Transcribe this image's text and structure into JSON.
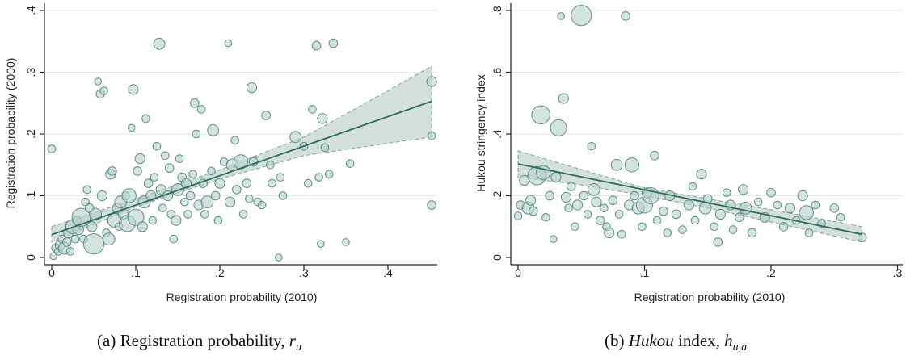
{
  "figure": {
    "panels": [
      {
        "id": "a",
        "caption_prefix": "(a)",
        "caption_text": "Registration probability,",
        "caption_symbol": "r",
        "caption_sub": "u"
      },
      {
        "id": "b",
        "caption_prefix": "(b)",
        "caption_italic": "Hukou",
        "caption_text": "index,",
        "caption_symbol": "h",
        "caption_sub": "u,a"
      }
    ]
  },
  "colors": {
    "marker_fill": "#b8d1cc",
    "marker_stroke": "#5f8e86",
    "fit_line": "#2e6a5f",
    "ci_fill": "#cddad6",
    "ci_stroke": "#7fa59d",
    "grid": "#e6e9e8",
    "axis": "#222222"
  },
  "chart_data": [
    {
      "type": "scatter",
      "xlabel": "Registration probability (2010)",
      "ylabel": "Registration probability (2000)",
      "xlim": [
        0,
        0.45
      ],
      "ylim": [
        0,
        0.4
      ],
      "xticks": [
        0,
        0.1,
        0.2,
        0.3,
        0.4
      ],
      "xtick_labels": [
        "0",
        ".1",
        ".2",
        ".3",
        ".4"
      ],
      "yticks": [
        0,
        0.1,
        0.2,
        0.3,
        0.4
      ],
      "ytick_labels": [
        "0",
        ".1",
        ".2",
        ".3",
        ".4"
      ],
      "grid": true,
      "marker_size": "proportional to weight",
      "fit": {
        "type": "linear",
        "x": [
          0,
          0.452
        ],
        "y": [
          0.037,
          0.253
        ]
      },
      "confidence_band": [
        {
          "x": 0.0,
          "lo": 0.025,
          "hi": 0.05
        },
        {
          "x": 0.1,
          "lo": 0.082,
          "hi": 0.095
        },
        {
          "x": 0.2,
          "lo": 0.127,
          "hi": 0.142
        },
        {
          "x": 0.3,
          "lo": 0.165,
          "hi": 0.195
        },
        {
          "x": 0.4,
          "lo": 0.185,
          "hi": 0.27
        },
        {
          "x": 0.452,
          "lo": 0.195,
          "hi": 0.31
        }
      ],
      "points": [
        {
          "x": 0.0,
          "y": 0.176,
          "w": 1.0
        },
        {
          "x": 0.002,
          "y": 0.002,
          "w": 0.8
        },
        {
          "x": 0.005,
          "y": 0.015,
          "w": 1.2
        },
        {
          "x": 0.008,
          "y": 0.01,
          "w": 1.0
        },
        {
          "x": 0.01,
          "y": 0.02,
          "w": 1.5
        },
        {
          "x": 0.012,
          "y": 0.03,
          "w": 1.0
        },
        {
          "x": 0.015,
          "y": 0.015,
          "w": 2.0
        },
        {
          "x": 0.018,
          "y": 0.025,
          "w": 1.2
        },
        {
          "x": 0.02,
          "y": 0.04,
          "w": 1.5
        },
        {
          "x": 0.022,
          "y": 0.01,
          "w": 1.0
        },
        {
          "x": 0.025,
          "y": 0.05,
          "w": 2.5
        },
        {
          "x": 0.028,
          "y": 0.03,
          "w": 1.0
        },
        {
          "x": 0.03,
          "y": 0.06,
          "w": 1.2
        },
        {
          "x": 0.032,
          "y": 0.045,
          "w": 1.5
        },
        {
          "x": 0.035,
          "y": 0.065,
          "w": 3.5
        },
        {
          "x": 0.038,
          "y": 0.03,
          "w": 1.0
        },
        {
          "x": 0.04,
          "y": 0.09,
          "w": 1.0
        },
        {
          "x": 0.042,
          "y": 0.11,
          "w": 1.0
        },
        {
          "x": 0.045,
          "y": 0.08,
          "w": 1.2
        },
        {
          "x": 0.048,
          "y": 0.05,
          "w": 1.5
        },
        {
          "x": 0.05,
          "y": 0.022,
          "w": 4.0
        },
        {
          "x": 0.052,
          "y": 0.07,
          "w": 2.0
        },
        {
          "x": 0.055,
          "y": 0.285,
          "w": 0.8
        },
        {
          "x": 0.058,
          "y": 0.265,
          "w": 1.2
        },
        {
          "x": 0.06,
          "y": 0.1,
          "w": 1.5
        },
        {
          "x": 0.062,
          "y": 0.27,
          "w": 1.0
        },
        {
          "x": 0.065,
          "y": 0.04,
          "w": 1.0
        },
        {
          "x": 0.068,
          "y": 0.03,
          "w": 2.0
        },
        {
          "x": 0.07,
          "y": 0.135,
          "w": 1.5
        },
        {
          "x": 0.072,
          "y": 0.14,
          "w": 1.2
        },
        {
          "x": 0.075,
          "y": 0.06,
          "w": 2.5
        },
        {
          "x": 0.078,
          "y": 0.08,
          "w": 1.5
        },
        {
          "x": 0.08,
          "y": 0.05,
          "w": 1.0
        },
        {
          "x": 0.082,
          "y": 0.09,
          "w": 2.0
        },
        {
          "x": 0.085,
          "y": 0.07,
          "w": 1.5
        },
        {
          "x": 0.088,
          "y": 0.1,
          "w": 1.0
        },
        {
          "x": 0.09,
          "y": 0.055,
          "w": 3.0
        },
        {
          "x": 0.092,
          "y": 0.1,
          "w": 2.5
        },
        {
          "x": 0.095,
          "y": 0.21,
          "w": 0.8
        },
        {
          "x": 0.097,
          "y": 0.272,
          "w": 1.5
        },
        {
          "x": 0.1,
          "y": 0.065,
          "w": 3.0
        },
        {
          "x": 0.102,
          "y": 0.14,
          "w": 1.2
        },
        {
          "x": 0.105,
          "y": 0.16,
          "w": 1.5
        },
        {
          "x": 0.108,
          "y": 0.05,
          "w": 1.5
        },
        {
          "x": 0.11,
          "y": 0.09,
          "w": 2.0
        },
        {
          "x": 0.112,
          "y": 0.225,
          "w": 1.0
        },
        {
          "x": 0.115,
          "y": 0.12,
          "w": 1.2
        },
        {
          "x": 0.118,
          "y": 0.1,
          "w": 1.5
        },
        {
          "x": 0.12,
          "y": 0.06,
          "w": 1.0
        },
        {
          "x": 0.122,
          "y": 0.13,
          "w": 1.0
        },
        {
          "x": 0.125,
          "y": 0.18,
          "w": 1.0
        },
        {
          "x": 0.128,
          "y": 0.346,
          "w": 1.8
        },
        {
          "x": 0.13,
          "y": 0.11,
          "w": 1.5
        },
        {
          "x": 0.132,
          "y": 0.08,
          "w": 1.0
        },
        {
          "x": 0.135,
          "y": 0.165,
          "w": 1.0
        },
        {
          "x": 0.138,
          "y": 0.1,
          "w": 1.5
        },
        {
          "x": 0.14,
          "y": 0.145,
          "w": 1.2
        },
        {
          "x": 0.142,
          "y": 0.07,
          "w": 1.0
        },
        {
          "x": 0.145,
          "y": 0.03,
          "w": 1.0
        },
        {
          "x": 0.148,
          "y": 0.06,
          "w": 1.5
        },
        {
          "x": 0.15,
          "y": 0.11,
          "w": 2.0
        },
        {
          "x": 0.152,
          "y": 0.16,
          "w": 1.0
        },
        {
          "x": 0.155,
          "y": 0.13,
          "w": 1.2
        },
        {
          "x": 0.158,
          "y": 0.09,
          "w": 1.0
        },
        {
          "x": 0.16,
          "y": 0.12,
          "w": 1.5
        },
        {
          "x": 0.162,
          "y": 0.07,
          "w": 1.0
        },
        {
          "x": 0.165,
          "y": 0.1,
          "w": 1.2
        },
        {
          "x": 0.168,
          "y": 0.135,
          "w": 1.0
        },
        {
          "x": 0.17,
          "y": 0.25,
          "w": 1.2
        },
        {
          "x": 0.172,
          "y": 0.2,
          "w": 1.0
        },
        {
          "x": 0.175,
          "y": 0.085,
          "w": 1.5
        },
        {
          "x": 0.178,
          "y": 0.24,
          "w": 1.0
        },
        {
          "x": 0.18,
          "y": 0.12,
          "w": 1.2
        },
        {
          "x": 0.182,
          "y": 0.07,
          "w": 1.0
        },
        {
          "x": 0.185,
          "y": 0.09,
          "w": 2.0
        },
        {
          "x": 0.19,
          "y": 0.14,
          "w": 1.0
        },
        {
          "x": 0.192,
          "y": 0.206,
          "w": 1.8
        },
        {
          "x": 0.195,
          "y": 0.1,
          "w": 1.2
        },
        {
          "x": 0.198,
          "y": 0.06,
          "w": 1.0
        },
        {
          "x": 0.2,
          "y": 0.12,
          "w": 1.5
        },
        {
          "x": 0.205,
          "y": 0.155,
          "w": 1.0
        },
        {
          "x": 0.21,
          "y": 0.347,
          "w": 0.8
        },
        {
          "x": 0.212,
          "y": 0.09,
          "w": 1.5
        },
        {
          "x": 0.215,
          "y": 0.15,
          "w": 2.0
        },
        {
          "x": 0.218,
          "y": 0.19,
          "w": 1.0
        },
        {
          "x": 0.22,
          "y": 0.11,
          "w": 1.2
        },
        {
          "x": 0.225,
          "y": 0.155,
          "w": 2.5
        },
        {
          "x": 0.228,
          "y": 0.07,
          "w": 1.0
        },
        {
          "x": 0.232,
          "y": 0.12,
          "w": 1.2
        },
        {
          "x": 0.235,
          "y": 0.095,
          "w": 1.0
        },
        {
          "x": 0.238,
          "y": 0.275,
          "w": 1.5
        },
        {
          "x": 0.24,
          "y": 0.155,
          "w": 1.2
        },
        {
          "x": 0.245,
          "y": 0.09,
          "w": 1.0
        },
        {
          "x": 0.25,
          "y": 0.085,
          "w": 1.0
        },
        {
          "x": 0.255,
          "y": 0.23,
          "w": 1.2
        },
        {
          "x": 0.26,
          "y": 0.15,
          "w": 1.0
        },
        {
          "x": 0.262,
          "y": 0.12,
          "w": 1.0
        },
        {
          "x": 0.27,
          "y": 0.0,
          "w": 0.8
        },
        {
          "x": 0.272,
          "y": 0.13,
          "w": 1.0
        },
        {
          "x": 0.275,
          "y": 0.1,
          "w": 1.0
        },
        {
          "x": 0.29,
          "y": 0.195,
          "w": 1.8
        },
        {
          "x": 0.3,
          "y": 0.18,
          "w": 1.0
        },
        {
          "x": 0.305,
          "y": 0.12,
          "w": 1.0
        },
        {
          "x": 0.31,
          "y": 0.24,
          "w": 1.0
        },
        {
          "x": 0.315,
          "y": 0.343,
          "w": 1.2
        },
        {
          "x": 0.318,
          "y": 0.13,
          "w": 1.0
        },
        {
          "x": 0.32,
          "y": 0.022,
          "w": 0.8
        },
        {
          "x": 0.322,
          "y": 0.225,
          "w": 1.5
        },
        {
          "x": 0.325,
          "y": 0.178,
          "w": 1.0
        },
        {
          "x": 0.33,
          "y": 0.135,
          "w": 1.0
        },
        {
          "x": 0.335,
          "y": 0.347,
          "w": 1.2
        },
        {
          "x": 0.35,
          "y": 0.025,
          "w": 0.8
        },
        {
          "x": 0.355,
          "y": 0.152,
          "w": 1.0
        },
        {
          "x": 0.452,
          "y": 0.285,
          "w": 1.5
        },
        {
          "x": 0.452,
          "y": 0.197,
          "w": 1.0
        },
        {
          "x": 0.452,
          "y": 0.085,
          "w": 1.2
        }
      ]
    },
    {
      "type": "scatter",
      "xlabel": "Registration probability (2010)",
      "ylabel": "Hukou stringency index",
      "xlim": [
        0,
        0.3
      ],
      "ylim": [
        0,
        0.8
      ],
      "xticks": [
        0,
        0.1,
        0.2,
        0.3
      ],
      "xtick_labels": [
        "0",
        ".1",
        ".2",
        ".3"
      ],
      "yticks": [
        0,
        0.2,
        0.4,
        0.6,
        0.8
      ],
      "ytick_labels": [
        "0",
        ".2",
        ".4",
        ".6",
        ".8"
      ],
      "grid": true,
      "marker_size": "proportional to weight",
      "fit": {
        "type": "linear",
        "x": [
          0,
          0.272
        ],
        "y": [
          0.303,
          0.075
        ]
      },
      "confidence_band": [
        {
          "x": 0.0,
          "lo": 0.26,
          "hi": 0.345
        },
        {
          "x": 0.05,
          "lo": 0.235,
          "hi": 0.285
        },
        {
          "x": 0.1,
          "lo": 0.2,
          "hi": 0.225
        },
        {
          "x": 0.15,
          "lo": 0.16,
          "hi": 0.19
        },
        {
          "x": 0.2,
          "lo": 0.115,
          "hi": 0.155
        },
        {
          "x": 0.272,
          "lo": 0.05,
          "hi": 0.1
        }
      ],
      "points": [
        {
          "x": 0.0,
          "y": 0.135,
          "w": 1.0
        },
        {
          "x": 0.002,
          "y": 0.17,
          "w": 1.2
        },
        {
          "x": 0.005,
          "y": 0.25,
          "w": 1.5
        },
        {
          "x": 0.008,
          "y": 0.16,
          "w": 2.0
        },
        {
          "x": 0.01,
          "y": 0.185,
          "w": 1.5
        },
        {
          "x": 0.012,
          "y": 0.15,
          "w": 1.2
        },
        {
          "x": 0.015,
          "y": 0.265,
          "w": 3.5
        },
        {
          "x": 0.018,
          "y": 0.462,
          "w": 3.5
        },
        {
          "x": 0.02,
          "y": 0.275,
          "w": 2.5
        },
        {
          "x": 0.022,
          "y": 0.13,
          "w": 1.0
        },
        {
          "x": 0.025,
          "y": 0.2,
          "w": 1.2
        },
        {
          "x": 0.028,
          "y": 0.06,
          "w": 0.8
        },
        {
          "x": 0.03,
          "y": 0.26,
          "w": 1.5
        },
        {
          "x": 0.032,
          "y": 0.42,
          "w": 3.0
        },
        {
          "x": 0.034,
          "y": 0.782,
          "w": 0.8
        },
        {
          "x": 0.036,
          "y": 0.515,
          "w": 1.5
        },
        {
          "x": 0.038,
          "y": 0.195,
          "w": 1.5
        },
        {
          "x": 0.04,
          "y": 0.16,
          "w": 1.0
        },
        {
          "x": 0.042,
          "y": 0.23,
          "w": 1.2
        },
        {
          "x": 0.045,
          "y": 0.1,
          "w": 1.0
        },
        {
          "x": 0.047,
          "y": 0.17,
          "w": 1.5
        },
        {
          "x": 0.05,
          "y": 0.784,
          "w": 4.0
        },
        {
          "x": 0.052,
          "y": 0.2,
          "w": 1.2
        },
        {
          "x": 0.055,
          "y": 0.14,
          "w": 1.0
        },
        {
          "x": 0.058,
          "y": 0.36,
          "w": 1.0
        },
        {
          "x": 0.06,
          "y": 0.22,
          "w": 2.0
        },
        {
          "x": 0.062,
          "y": 0.18,
          "w": 1.5
        },
        {
          "x": 0.065,
          "y": 0.12,
          "w": 1.2
        },
        {
          "x": 0.068,
          "y": 0.16,
          "w": 1.0
        },
        {
          "x": 0.07,
          "y": 0.1,
          "w": 1.0
        },
        {
          "x": 0.072,
          "y": 0.08,
          "w": 1.5
        },
        {
          "x": 0.075,
          "y": 0.185,
          "w": 1.2
        },
        {
          "x": 0.078,
          "y": 0.3,
          "w": 1.8
        },
        {
          "x": 0.08,
          "y": 0.14,
          "w": 1.0
        },
        {
          "x": 0.082,
          "y": 0.075,
          "w": 1.0
        },
        {
          "x": 0.085,
          "y": 0.782,
          "w": 1.2
        },
        {
          "x": 0.088,
          "y": 0.17,
          "w": 1.5
        },
        {
          "x": 0.09,
          "y": 0.3,
          "w": 2.5
        },
        {
          "x": 0.092,
          "y": 0.2,
          "w": 1.2
        },
        {
          "x": 0.095,
          "y": 0.16,
          "w": 2.0
        },
        {
          "x": 0.098,
          "y": 0.1,
          "w": 1.0
        },
        {
          "x": 0.1,
          "y": 0.17,
          "w": 3.0
        },
        {
          "x": 0.102,
          "y": 0.21,
          "w": 1.5
        },
        {
          "x": 0.105,
          "y": 0.2,
          "w": 3.0
        },
        {
          "x": 0.108,
          "y": 0.33,
          "w": 1.2
        },
        {
          "x": 0.11,
          "y": 0.12,
          "w": 1.0
        },
        {
          "x": 0.115,
          "y": 0.15,
          "w": 1.2
        },
        {
          "x": 0.118,
          "y": 0.08,
          "w": 1.0
        },
        {
          "x": 0.12,
          "y": 0.2,
          "w": 1.5
        },
        {
          "x": 0.125,
          "y": 0.14,
          "w": 1.2
        },
        {
          "x": 0.13,
          "y": 0.09,
          "w": 1.0
        },
        {
          "x": 0.135,
          "y": 0.17,
          "w": 1.5
        },
        {
          "x": 0.138,
          "y": 0.23,
          "w": 1.0
        },
        {
          "x": 0.14,
          "y": 0.12,
          "w": 1.0
        },
        {
          "x": 0.145,
          "y": 0.27,
          "w": 1.5
        },
        {
          "x": 0.148,
          "y": 0.16,
          "w": 2.0
        },
        {
          "x": 0.15,
          "y": 0.19,
          "w": 1.2
        },
        {
          "x": 0.155,
          "y": 0.1,
          "w": 1.0
        },
        {
          "x": 0.158,
          "y": 0.05,
          "w": 1.2
        },
        {
          "x": 0.16,
          "y": 0.14,
          "w": 1.5
        },
        {
          "x": 0.165,
          "y": 0.21,
          "w": 1.0
        },
        {
          "x": 0.168,
          "y": 0.17,
          "w": 1.5
        },
        {
          "x": 0.17,
          "y": 0.09,
          "w": 1.0
        },
        {
          "x": 0.175,
          "y": 0.13,
          "w": 1.2
        },
        {
          "x": 0.178,
          "y": 0.22,
          "w": 1.5
        },
        {
          "x": 0.18,
          "y": 0.16,
          "w": 2.0
        },
        {
          "x": 0.185,
          "y": 0.08,
          "w": 1.2
        },
        {
          "x": 0.19,
          "y": 0.18,
          "w": 1.0
        },
        {
          "x": 0.195,
          "y": 0.13,
          "w": 1.5
        },
        {
          "x": 0.2,
          "y": 0.21,
          "w": 1.2
        },
        {
          "x": 0.205,
          "y": 0.17,
          "w": 1.0
        },
        {
          "x": 0.21,
          "y": 0.1,
          "w": 1.2
        },
        {
          "x": 0.215,
          "y": 0.16,
          "w": 1.5
        },
        {
          "x": 0.22,
          "y": 0.12,
          "w": 1.0
        },
        {
          "x": 0.225,
          "y": 0.2,
          "w": 1.5
        },
        {
          "x": 0.228,
          "y": 0.145,
          "w": 2.5
        },
        {
          "x": 0.23,
          "y": 0.08,
          "w": 1.0
        },
        {
          "x": 0.235,
          "y": 0.17,
          "w": 1.0
        },
        {
          "x": 0.24,
          "y": 0.11,
          "w": 1.0
        },
        {
          "x": 0.25,
          "y": 0.16,
          "w": 1.2
        },
        {
          "x": 0.255,
          "y": 0.13,
          "w": 1.0
        },
        {
          "x": 0.272,
          "y": 0.065,
          "w": 1.2
        }
      ]
    }
  ]
}
